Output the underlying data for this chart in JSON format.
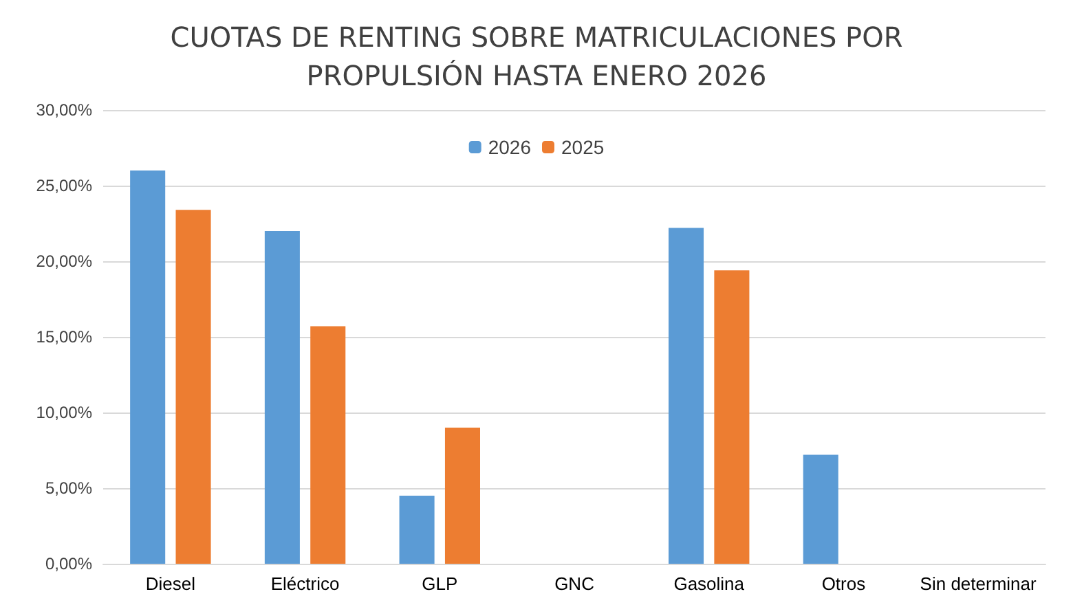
{
  "chart_data": {
    "type": "bar",
    "title": "CUOTAS DE RENTING SOBRE MATRICULACIONES POR\nPROPULSIÓN HASTA ENERO 2026",
    "categories": [
      "Diesel",
      "Eléctrico",
      "GLP",
      "GNC",
      "Gasolina",
      "Otros",
      "Sin determinar"
    ],
    "series": [
      {
        "name": "2026",
        "color": "#5b9bd5",
        "values": [
          26.0,
          22.0,
          4.5,
          0,
          22.2,
          7.2,
          0
        ]
      },
      {
        "name": "2025",
        "color": "#ed7d31",
        "values": [
          23.4,
          15.7,
          9.0,
          0,
          19.4,
          0,
          0
        ]
      }
    ],
    "ylim": [
      0,
      30
    ],
    "yticks": [
      {
        "value": 0,
        "label": "0,00%"
      },
      {
        "value": 5,
        "label": "5,00%"
      },
      {
        "value": 10,
        "label": "10,00%"
      },
      {
        "value": 15,
        "label": "15,00%"
      },
      {
        "value": 20,
        "label": "20,00%"
      },
      {
        "value": 25,
        "label": "25,00%"
      },
      {
        "value": 30,
        "label": "30,00%"
      }
    ],
    "grid": "y",
    "legend": "top"
  }
}
